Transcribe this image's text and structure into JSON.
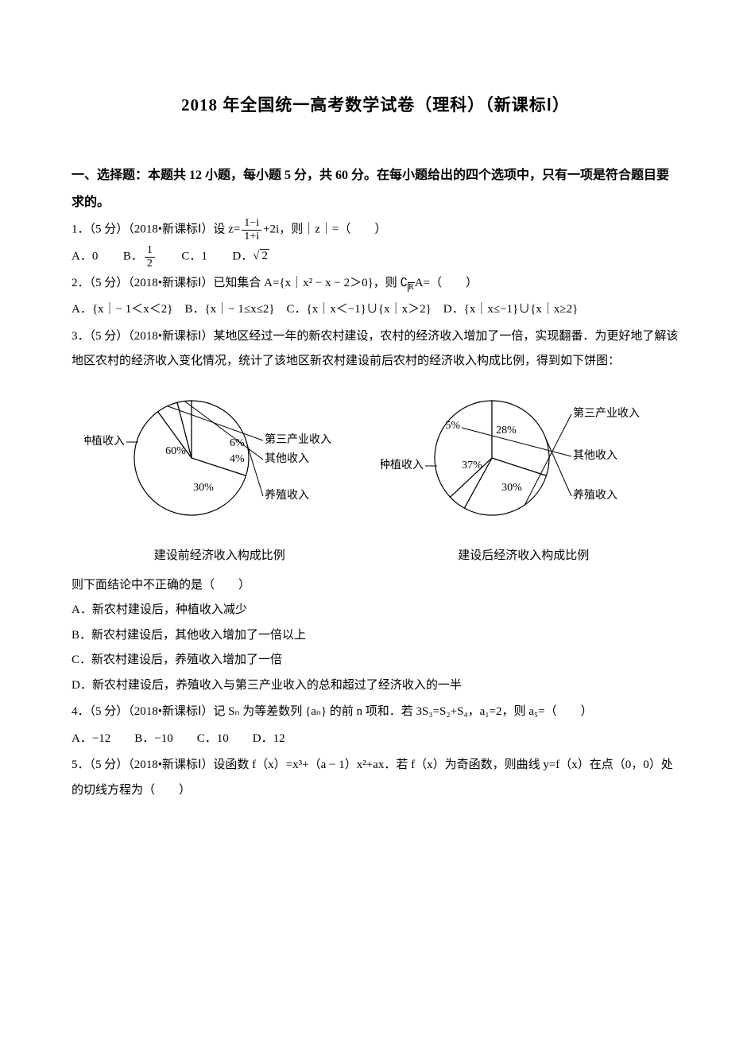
{
  "title": "2018 年全国统一高考数学试卷（理科）（新课标Ⅰ）",
  "section1": "一、选择题：本题共 12 小题，每小题 5 分，共 60 分。在每小题给出的四个选项中，只有一项是符合题目要求的。",
  "q1": {
    "prefix": "1．（5 分）（2018•新课标Ⅰ）设 z=",
    "frac_num": "1−i",
    "frac_den": "1+i",
    "suffix": "+2i，则｜z｜=（　　）",
    "optA_label": "A．",
    "optA_val": "0",
    "optB_label": "B．",
    "optB_frac_num": "1",
    "optB_frac_den": "2",
    "optC_label": "C．",
    "optC_val": "1",
    "optD_label": "D．",
    "optD_sqrt": "2"
  },
  "q2": {
    "line": "2．（5 分）（2018•新课标Ⅰ）已知集合 A={x｜x² − x − 2＞0}，则 ",
    "compl": "R",
    "line_end": "A=（　　）",
    "opts": "A．{x｜− 1＜x＜2}　B．{x｜− 1≤x≤2}　C．{x｜x＜−1}∪{x｜x＞2}　D．{x｜x≤−1}∪{x｜x≥2}"
  },
  "q3": {
    "line1": "3．（5 分）（2018•新课标Ⅰ）某地区经过一年的新农村建设，农村的经济收入增加了一倍，实现翻番．为更好地了解该地区农村的经济收入变化情况，统计了该地区新农村建设前后农村的经济收入构成比例，得到如下饼图：",
    "chart1_caption": "建设前经济收入构成比例",
    "chart2_caption": "建设后经济收入构成比例",
    "stem2": "则下面结论中不正确的是（　　）",
    "optA": "A．新农村建设后，种植收入减少",
    "optB": "B．新农村建设后，其他收入增加了一倍以上",
    "optC": "C．新农村建设后，养殖收入增加了一倍",
    "optD": "D．新农村建设后，养殖收入与第三产业收入的总和超过了经济收入的一半"
  },
  "chart1": {
    "label_plant": "种植收入",
    "label_third": "第三产业收入",
    "label_other": "其他收入",
    "label_breed": "养殖收入",
    "pct_plant": "60%",
    "pct_third": "6%",
    "pct_other": "4%",
    "pct_breed": "30%",
    "slices": [
      {
        "start": 108,
        "end": 324,
        "value": 60
      },
      {
        "start": 324,
        "end": 345.6,
        "value": 6
      },
      {
        "start": 345.6,
        "end": 360,
        "value": 4
      },
      {
        "start": 0,
        "end": 108,
        "value": 30
      }
    ],
    "radius": 72,
    "fill": "#ffffff",
    "stroke": "#000000"
  },
  "chart2": {
    "label_plant": "种植收入",
    "label_third": "第三产业收入",
    "label_other": "其他收入",
    "label_breed": "养殖收入",
    "pct_plant": "37%",
    "pct_third": "28%",
    "pct_other": "5%",
    "pct_breed": "30%",
    "slices": [
      {
        "start": 226.8,
        "end": 360,
        "value": 37
      },
      {
        "start": 108,
        "end": 208.8,
        "value": 28
      },
      {
        "start": 208.8,
        "end": 226.8,
        "value": 5
      },
      {
        "start": 0,
        "end": 108,
        "value": 30
      }
    ],
    "radius": 72,
    "fill": "#ffffff",
    "stroke": "#000000"
  },
  "q4": {
    "line": "4．（5 分）（2018•新课标Ⅰ）记 Sₙ 为等差数列 {aₙ} 的前 n 项和．若 3S₃=S₂+S₄，a₁=2，则 a₅=（　　）",
    "opts": "A．−12　　B．−10　　C．10　　D．12"
  },
  "q5": {
    "line": "5．（5 分）（2018•新课标Ⅰ）设函数 f（x）=x³+（a − 1）x²+ax．若 f（x）为奇函数，则曲线 y=f（x）在点（0，0）处的切线方程为（　　）"
  }
}
